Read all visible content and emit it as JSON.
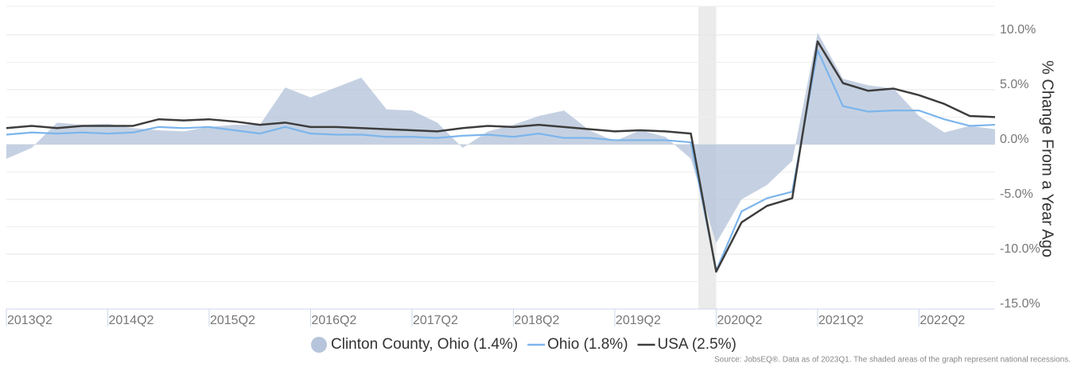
{
  "chart_data": {
    "type": "area_line",
    "y_axis_label": "% Change From a Year Ago",
    "source": "Source: JobsEQ®. Data as of 2023Q1. The shaded areas of the graph represent national recessions.",
    "categories": [
      "2013Q2",
      null,
      null,
      null,
      "2014Q2",
      null,
      null,
      null,
      "2015Q2",
      null,
      null,
      null,
      "2016Q2",
      null,
      null,
      null,
      "2017Q2",
      null,
      null,
      null,
      "2018Q2",
      null,
      null,
      null,
      "2019Q2",
      null,
      null,
      null,
      "2020Q2",
      null,
      null,
      null,
      "2021Q2",
      null,
      null,
      null,
      "2022Q2",
      null,
      null,
      null
    ],
    "recessions": [
      [
        27.3,
        28
      ]
    ],
    "series": [
      {
        "name": "Clinton County, Ohio (1.4%)",
        "kind": "area",
        "color": "#b6c5db",
        "values": [
          -1.3,
          -0.3,
          2.0,
          1.8,
          1.9,
          1.5,
          1.3,
          1.2,
          1.6,
          1.8,
          1.8,
          5.2,
          4.3,
          5.2,
          6.1,
          3.2,
          3.1,
          2.0,
          -0.3,
          1.2,
          1.8,
          2.6,
          3.1,
          1.3,
          0.3,
          1.3,
          0.7,
          -1.3,
          -9.0,
          -5.0,
          -3.7,
          -1.5,
          10.2,
          6.0,
          5.4,
          5.1,
          2.6,
          1.1,
          1.7,
          1.4
        ]
      },
      {
        "name": "Ohio (1.8%)",
        "kind": "line",
        "color": "#7cb5ec",
        "values": [
          0.9,
          1.1,
          1.0,
          1.1,
          1.0,
          1.1,
          1.6,
          1.5,
          1.6,
          1.3,
          1.0,
          1.6,
          1.0,
          0.9,
          0.9,
          0.7,
          0.7,
          0.6,
          0.8,
          0.9,
          0.7,
          1.0,
          0.6,
          0.6,
          0.4,
          0.4,
          0.4,
          0.2,
          -11.5,
          -6.1,
          -4.9,
          -4.3,
          8.6,
          3.5,
          3.0,
          3.1,
          3.1,
          2.3,
          1.7,
          1.8
        ]
      },
      {
        "name": "USA (2.5%)",
        "kind": "line",
        "color": "#3d3d3d",
        "values": [
          1.5,
          1.7,
          1.5,
          1.7,
          1.7,
          1.7,
          2.3,
          2.2,
          2.3,
          2.1,
          1.8,
          2.0,
          1.6,
          1.6,
          1.5,
          1.4,
          1.3,
          1.2,
          1.5,
          1.7,
          1.6,
          1.8,
          1.6,
          1.4,
          1.2,
          1.3,
          1.2,
          1.0,
          -11.6,
          -7.1,
          -5.6,
          -4.9,
          9.4,
          5.6,
          4.9,
          5.1,
          4.5,
          3.7,
          2.6,
          2.5
        ]
      }
    ],
    "ylim": [
      -15,
      12.6
    ],
    "yticks": [
      {
        "value": -15,
        "label": "-15.0%"
      },
      {
        "value": -10,
        "label": "-10.0%"
      },
      {
        "value": -5,
        "label": "-5.0%"
      },
      {
        "value": 0,
        "label": "0.0%"
      },
      {
        "value": 5,
        "label": "5.0%"
      },
      {
        "value": 10,
        "label": "10.0%"
      }
    ],
    "minor_yticks": [
      -12.5,
      -7.5,
      -2.5,
      2.5,
      7.5
    ],
    "grid": true
  }
}
